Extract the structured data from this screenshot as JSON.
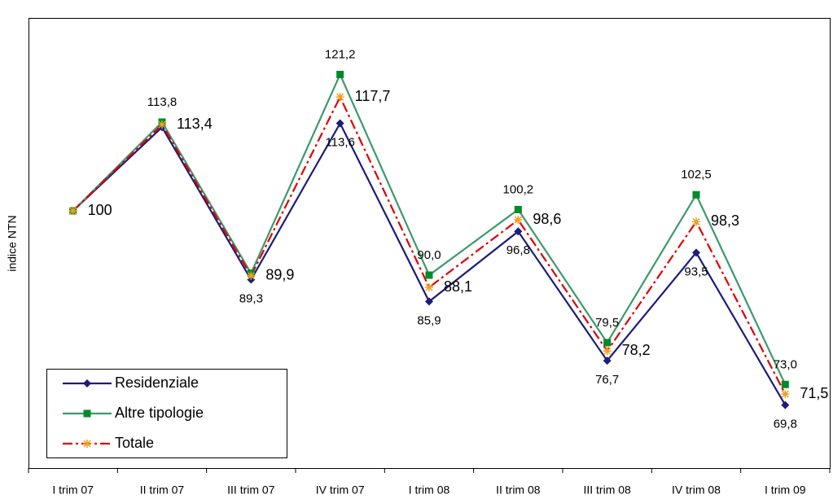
{
  "chart_data": {
    "type": "line",
    "y_label": "indice NTN",
    "categories": [
      "I trim 07",
      "II trim 07",
      "III trim 07",
      "IV trim 07",
      "I trim 08",
      "II trim 08",
      "III trim 08",
      "IV trim 08",
      "I trim 09"
    ],
    "ylim": [
      60,
      130
    ],
    "legend": "bottom-left",
    "series": [
      {
        "name": "Residenziale",
        "color": "#1c1c7c",
        "marker": "diamond",
        "marker_color": "#1c1c7c",
        "dash": "solid",
        "label_position": "below",
        "values": [
          100,
          113.0,
          89.3,
          113.6,
          85.9,
          96.8,
          76.7,
          93.5,
          69.8
        ],
        "value_labels": [
          null,
          null,
          "89,3",
          "113,6",
          "85,9",
          "96,8",
          "76,7",
          "93,5",
          "69,8"
        ]
      },
      {
        "name": "Altre tipologie",
        "color": "#3c9a6a",
        "marker": "square",
        "marker_color": "#008a2a",
        "dash": "solid",
        "label_position": "above",
        "values": [
          100,
          113.8,
          90.3,
          121.2,
          90.0,
          100.2,
          79.5,
          102.5,
          73.0
        ],
        "value_labels": [
          null,
          "113,8",
          null,
          "121,2",
          "90,0",
          "100,2",
          "79,5",
          "102,5",
          "73,0"
        ]
      },
      {
        "name": "Totale",
        "color": "#e00000",
        "marker": "star",
        "marker_color": "#f0a020",
        "dash": "dash-dot",
        "label_position": "right",
        "values": [
          100,
          113.4,
          89.9,
          117.7,
          88.1,
          98.6,
          78.2,
          98.3,
          71.5
        ],
        "value_labels": [
          "100",
          "113,4",
          "89,9",
          "117,7",
          "88,1",
          "98,6",
          "78,2",
          "98,3",
          "71,5"
        ]
      }
    ]
  }
}
